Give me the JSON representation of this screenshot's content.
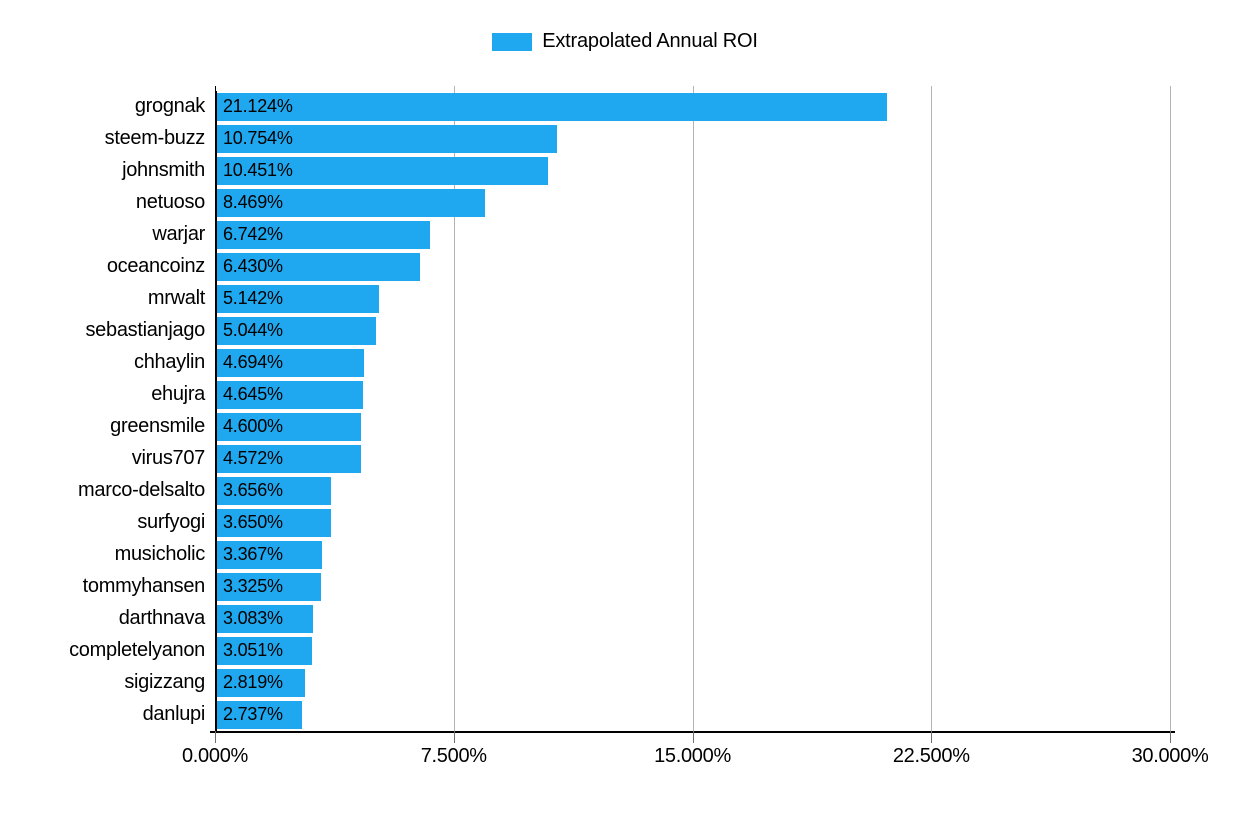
{
  "chart": {
    "type": "horizontal-bar",
    "legend": {
      "label": "Extrapolated Annual ROI",
      "swatch_color": "#1fa8ef"
    },
    "background_color": "#ffffff",
    "bar_color": "#1fa8ef",
    "axis_color": "#000000",
    "gridline_color": "#b3b3b3",
    "tick_color": "#6f6f6f",
    "label_fontsize": 20,
    "value_label_fontsize": 18,
    "x": {
      "min": 0,
      "max": 30,
      "ticks": [
        0,
        7.5,
        15,
        22.5,
        30
      ],
      "tick_labels": [
        "0.000%",
        "7.500%",
        "15.000%",
        "22.500%",
        "30.000%"
      ]
    },
    "data": [
      {
        "name": "grognak",
        "value": 21.124,
        "label": "21.124%"
      },
      {
        "name": "steem-buzz",
        "value": 10.754,
        "label": "10.754%"
      },
      {
        "name": "johnsmith",
        "value": 10.451,
        "label": "10.451%"
      },
      {
        "name": "netuoso",
        "value": 8.469,
        "label": "8.469%"
      },
      {
        "name": "warjar",
        "value": 6.742,
        "label": "6.742%"
      },
      {
        "name": "oceancoinz",
        "value": 6.43,
        "label": "6.430%"
      },
      {
        "name": "mrwalt",
        "value": 5.142,
        "label": "5.142%"
      },
      {
        "name": "sebastianjago",
        "value": 5.044,
        "label": "5.044%"
      },
      {
        "name": "chhaylin",
        "value": 4.694,
        "label": "4.694%"
      },
      {
        "name": "ehujra",
        "value": 4.645,
        "label": "4.645%"
      },
      {
        "name": "greensmile",
        "value": 4.6,
        "label": "4.600%"
      },
      {
        "name": "virus707",
        "value": 4.572,
        "label": "4.572%"
      },
      {
        "name": "marco-delsalto",
        "value": 3.656,
        "label": "3.656%"
      },
      {
        "name": "surfyogi",
        "value": 3.65,
        "label": "3.650%"
      },
      {
        "name": "musicholic",
        "value": 3.367,
        "label": "3.367%"
      },
      {
        "name": "tommyhansen",
        "value": 3.325,
        "label": "3.325%"
      },
      {
        "name": "darthnava",
        "value": 3.083,
        "label": "3.083%"
      },
      {
        "name": "completelyanon",
        "value": 3.051,
        "label": "3.051%"
      },
      {
        "name": "sigizzang",
        "value": 2.819,
        "label": "2.819%"
      },
      {
        "name": "danlupi",
        "value": 2.737,
        "label": "2.737%"
      }
    ]
  }
}
